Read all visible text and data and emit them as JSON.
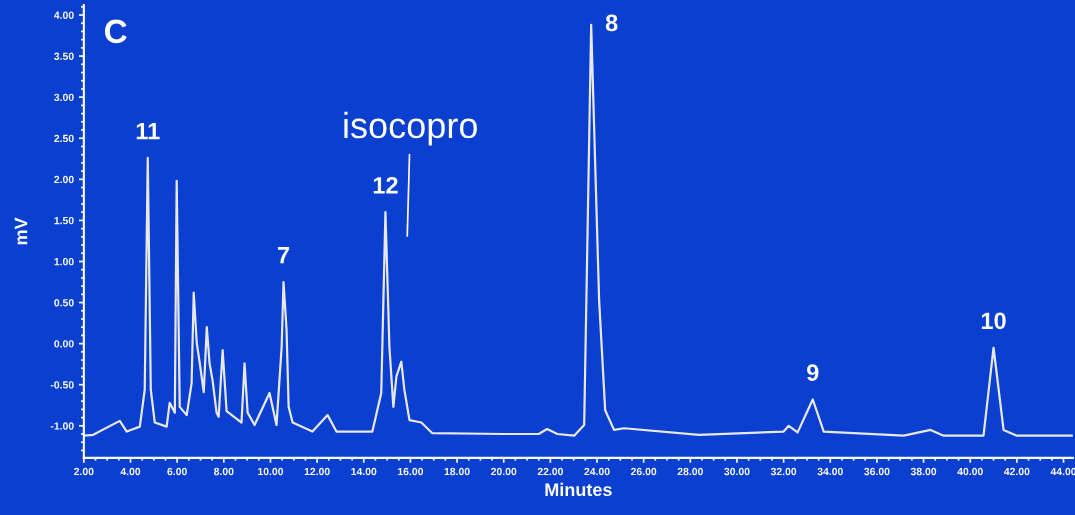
{
  "chart_data": {
    "type": "line",
    "xlabel": "Minutes",
    "ylabel": "mV",
    "xlim": [
      2.0,
      44.4
    ],
    "ylim": [
      -1.39,
      4.12
    ],
    "xticks": [
      {
        "value": 2,
        "label": "2.00"
      },
      {
        "value": 4,
        "label": "4.00"
      },
      {
        "value": 6,
        "label": "6.00"
      },
      {
        "value": 8,
        "label": "8.00"
      },
      {
        "value": 10,
        "label": "10.00"
      },
      {
        "value": 12,
        "label": "12.00"
      },
      {
        "value": 14,
        "label": "14.00"
      },
      {
        "value": 16,
        "label": "16.00"
      },
      {
        "value": 18,
        "label": "18.00"
      },
      {
        "value": 20,
        "label": "20.00"
      },
      {
        "value": 22,
        "label": "22.00"
      },
      {
        "value": 24,
        "label": "24.00"
      },
      {
        "value": 26,
        "label": "26.00"
      },
      {
        "value": 28,
        "label": "28.00"
      },
      {
        "value": 30,
        "label": "30.00"
      },
      {
        "value": 32,
        "label": "32.00"
      },
      {
        "value": 34,
        "label": "34.00"
      },
      {
        "value": 36,
        "label": "36.00"
      },
      {
        "value": 38,
        "label": "38.00"
      },
      {
        "value": 40,
        "label": "40.00"
      },
      {
        "value": 42,
        "label": "42.00"
      },
      {
        "value": 44,
        "label": "44.00"
      }
    ],
    "yticks": [
      {
        "value": -1,
        "label": "-1.00"
      },
      {
        "value": -0.5,
        "label": "-0.50"
      },
      {
        "value": 0,
        "label": "0.00"
      },
      {
        "value": 0.5,
        "label": "0.50"
      },
      {
        "value": 1,
        "label": "1.00"
      },
      {
        "value": 1.5,
        "label": "1.50"
      },
      {
        "value": 2,
        "label": "2.00"
      },
      {
        "value": 2.5,
        "label": "2.50"
      },
      {
        "value": 3,
        "label": "3.00"
      },
      {
        "value": 3.5,
        "label": "3.50"
      },
      {
        "value": 4,
        "label": "4.00"
      }
    ],
    "grid": false,
    "marker": "none",
    "line_style": "solid",
    "series": [
      {
        "color": "#e8e8e8",
        "x": [
          2.0,
          2.4,
          3.54,
          3.84,
          4.4,
          4.61,
          4.74,
          4.87,
          5.04,
          5.55,
          5.68,
          5.9,
          5.98,
          6.11,
          6.41,
          6.62,
          6.71,
          6.84,
          6.97,
          7.14,
          7.27,
          7.39,
          7.52,
          7.69,
          7.78,
          7.95,
          8.12,
          8.76,
          8.89,
          9.02,
          9.32,
          9.96,
          10.26,
          10.48,
          10.56,
          10.69,
          10.78,
          10.95,
          11.8,
          12.45,
          12.83,
          14.37,
          14.75,
          14.93,
          15.1,
          15.27,
          15.4,
          15.61,
          15.74,
          15.96,
          16.47,
          16.94,
          20.0,
          21.5,
          21.86,
          22.3,
          23.02,
          23.45,
          23.75,
          24.09,
          24.35,
          24.73,
          25.16,
          28.37,
          32.0,
          32.22,
          32.6,
          33.25,
          33.72,
          37.15,
          38.3,
          38.86,
          40.57,
          41.0,
          41.43,
          42.0,
          44.4
        ],
        "values": [
          -1.12,
          -1.11,
          -0.94,
          -1.07,
          -1.01,
          -0.56,
          2.26,
          -0.56,
          -0.96,
          -1.01,
          -0.72,
          -0.84,
          1.98,
          -0.77,
          -0.87,
          -0.48,
          0.62,
          0.01,
          -0.24,
          -0.59,
          0.2,
          -0.24,
          -0.45,
          -0.84,
          -0.89,
          -0.08,
          -0.82,
          -0.96,
          -0.24,
          -0.84,
          -0.99,
          -0.6,
          -0.99,
          -0.04,
          0.75,
          0.17,
          -0.77,
          -0.96,
          -1.07,
          -0.87,
          -1.07,
          -1.07,
          -0.6,
          1.6,
          -0.04,
          -0.77,
          -0.4,
          -0.22,
          -0.56,
          -0.93,
          -0.96,
          -1.09,
          -1.1,
          -1.1,
          -1.04,
          -1.1,
          -1.12,
          -0.99,
          3.88,
          0.53,
          -0.81,
          -1.05,
          -1.03,
          -1.11,
          -1.07,
          -1.0,
          -1.08,
          -0.68,
          -1.07,
          -1.12,
          -1.05,
          -1.12,
          -1.12,
          -0.05,
          -1.05,
          -1.12,
          -1.12
        ]
      }
    ],
    "annotations": [
      "C",
      {
        "text": "11",
        "x": 4.74,
        "y": 2.26
      },
      {
        "text": "7",
        "x": 10.56,
        "y": 0.75
      },
      {
        "text": "12",
        "x": 14.93,
        "y": 1.6
      },
      "isocopro",
      {
        "text": "8",
        "x": 23.75,
        "y": 3.88
      },
      {
        "text": "9",
        "x": 33.25,
        "y": -0.68
      },
      {
        "text": "10",
        "x": 41.0,
        "y": -0.05
      }
    ]
  }
}
